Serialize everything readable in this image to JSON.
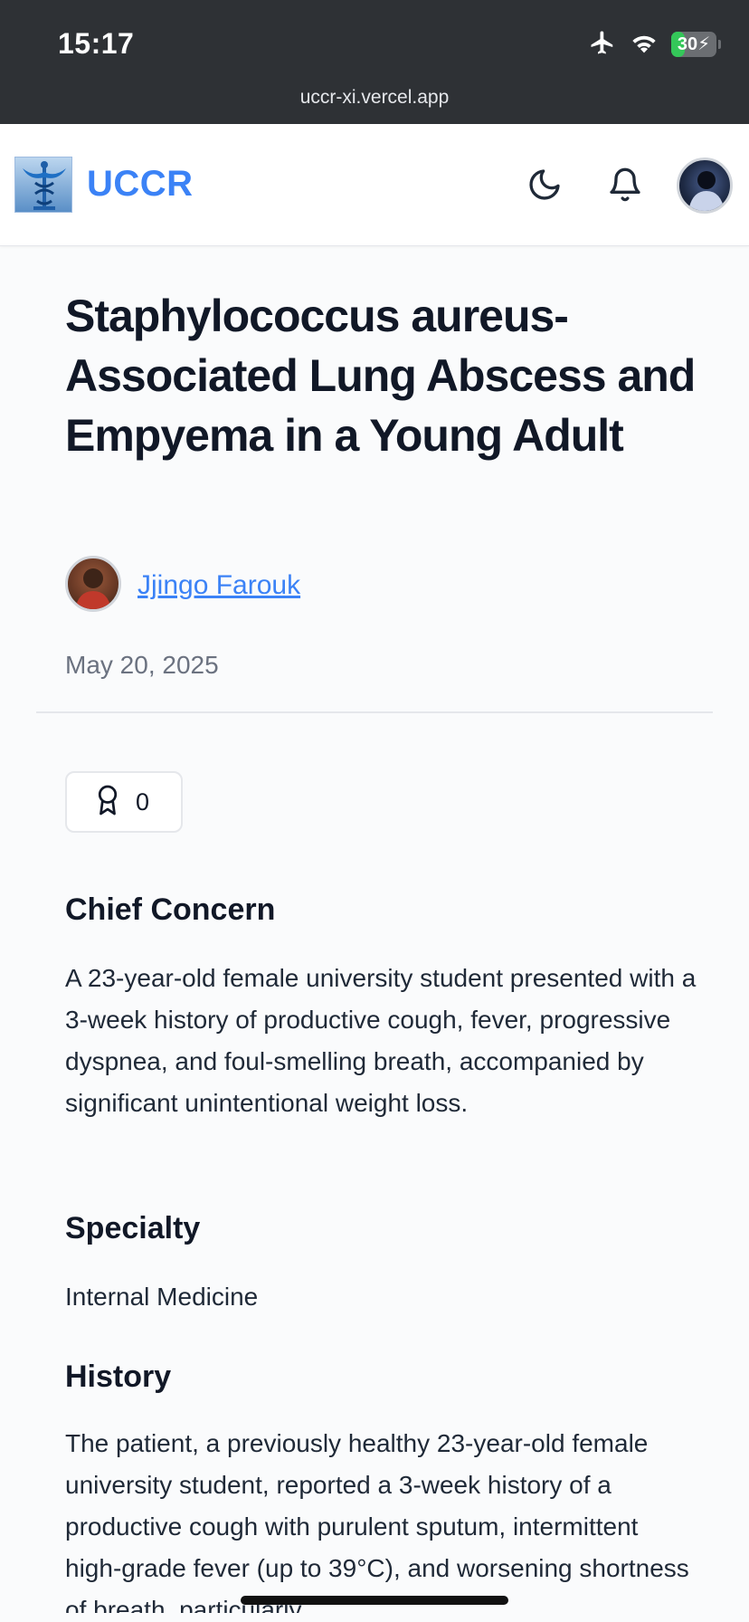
{
  "status_bar": {
    "time": "15:17",
    "battery": "30",
    "battery_level_percent": 30,
    "url": "uccr-xi.vercel.app"
  },
  "header": {
    "brand": "UCCR",
    "logo_icon": "caduceus-icon",
    "theme_icon": "moon-icon",
    "notifications_icon": "bell-icon",
    "accent": "#3b82f6"
  },
  "article": {
    "title": "Staphylococcus aureus-Associated Lung Abscess and Empyema in a Young Adult",
    "author": "Jjingo Farouk",
    "date": "May 20, 2025",
    "award_count": "0",
    "sections": [
      {
        "heading": "Chief Concern",
        "text": "A 23-year-old female university student presented with a 3-week history of productive cough, fever, progressive dyspnea, and foul-smelling breath, accompanied by significant unintentional weight loss."
      },
      {
        "heading": "Specialty",
        "text": "Internal Medicine"
      },
      {
        "heading": "History",
        "text": "The patient, a previously healthy 23-year-old female university student, reported a 3-week history of a productive cough with purulent sputum, intermittent high-grade fever (up to 39°C), and worsening shortness of breath, particularly"
      }
    ]
  }
}
